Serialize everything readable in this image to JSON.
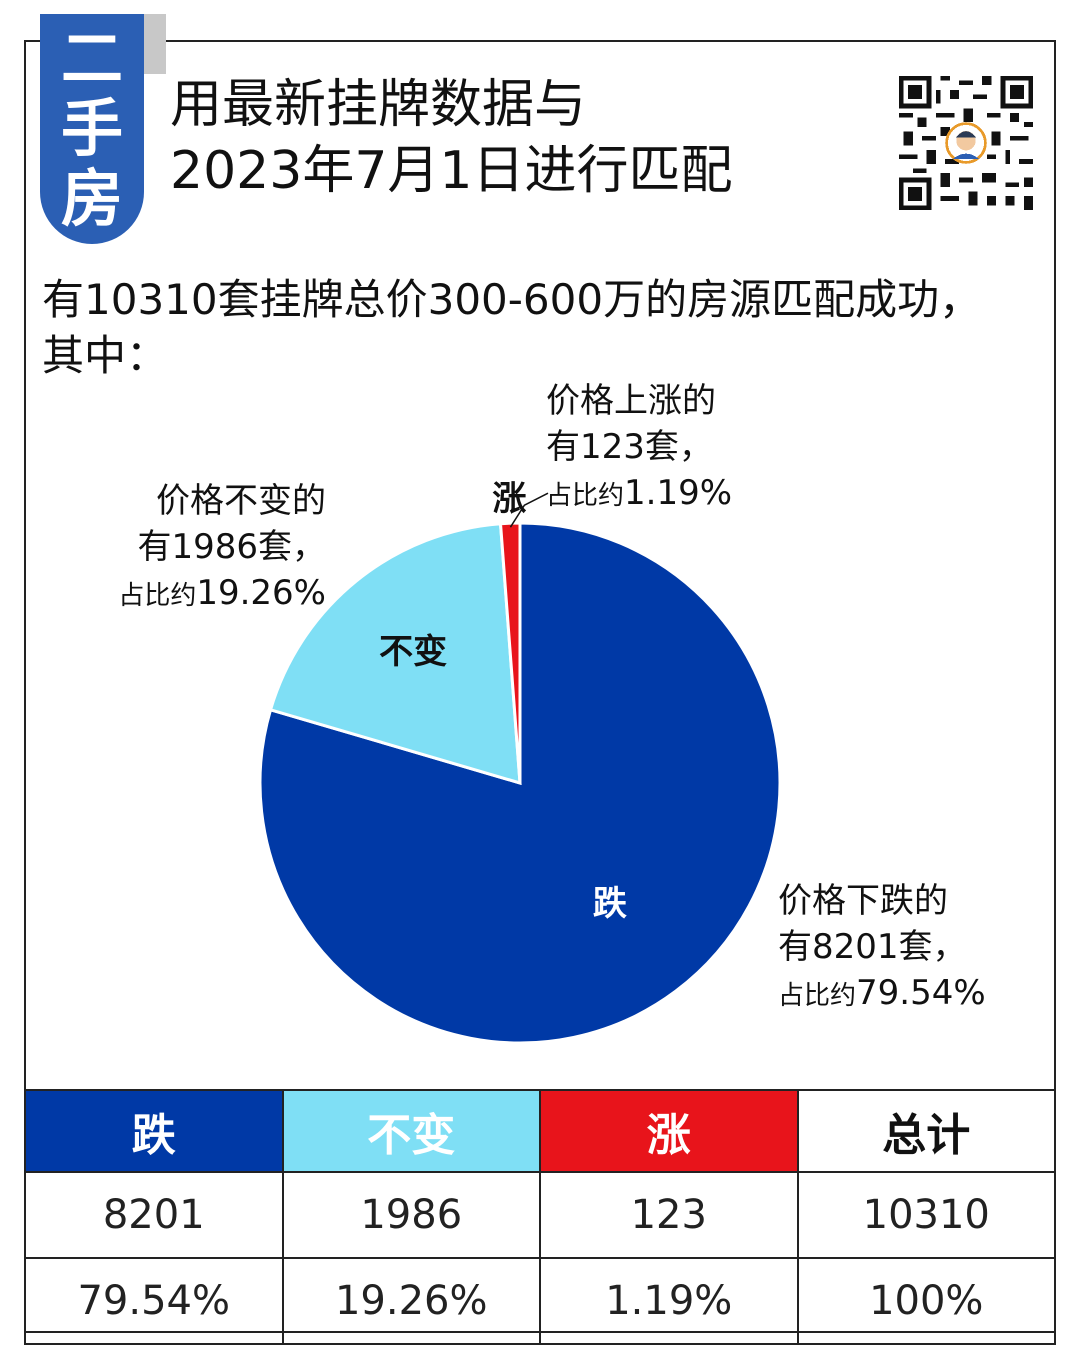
{
  "badge": {
    "chars": [
      "二",
      "手",
      "房"
    ],
    "color": "#2b5fb4"
  },
  "title": {
    "line1": "用最新挂牌数据与",
    "line2": "2023年7月1日进行匹配"
  },
  "summary": {
    "line1": "有10310套挂牌总价300-600万的房源匹配成功，",
    "line2": "其中："
  },
  "qr_code": {
    "icon": "qr-code-icon"
  },
  "colors": {
    "down": "#0039a6",
    "same": "#7fdff5",
    "up": "#e8141b",
    "frame": "#222222"
  },
  "chart_data": {
    "type": "pie",
    "total": 10310,
    "slices": [
      {
        "label": "跌",
        "value": 8201,
        "percent": 79.54,
        "color": "#0039a6"
      },
      {
        "label": "不变",
        "value": 1986,
        "percent": 19.26,
        "color": "#7fdff5"
      },
      {
        "label": "涨",
        "value": 123,
        "percent": 1.19,
        "color": "#e8141b"
      }
    ],
    "annotations": {
      "up": {
        "line1": "价格上涨的",
        "line2": "有123套，",
        "prefix": "占比约",
        "pct": "1.19%"
      },
      "same": {
        "line1": "价格不变的",
        "line2": "有1986套，",
        "prefix": "占比约",
        "pct": "19.26%"
      },
      "down": {
        "line1": "价格下跌的",
        "line2": "有8201套，",
        "prefix": "占比约",
        "pct": "79.54%"
      }
    }
  },
  "table": {
    "headers": [
      "跌",
      "不变",
      "涨",
      "总计"
    ],
    "counts": [
      "8201",
      "1986",
      "123",
      "10310"
    ],
    "percents": [
      "79.54%",
      "19.26%",
      "1.19%",
      "100%"
    ]
  }
}
